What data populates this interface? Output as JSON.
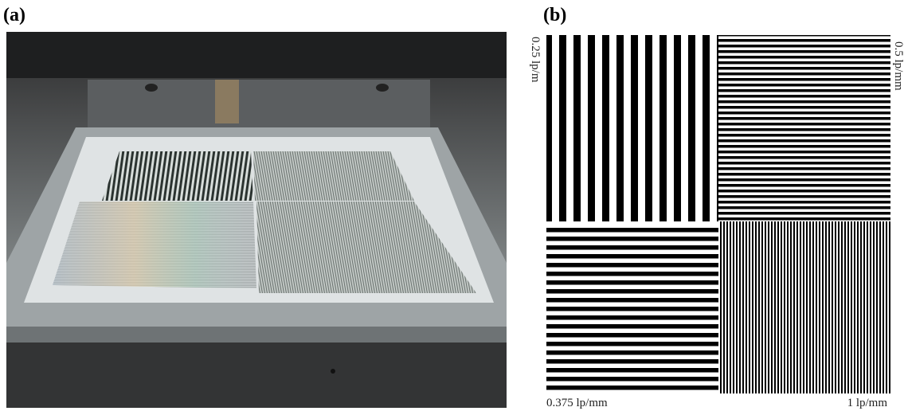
{
  "panels": {
    "a": {
      "label": "(a)"
    },
    "b": {
      "label": "(b)",
      "quadrants": [
        "0.25 lp/m",
        "0.5 lp/mm",
        "0.375 lp/mm",
        "1 lp/mm"
      ]
    }
  }
}
